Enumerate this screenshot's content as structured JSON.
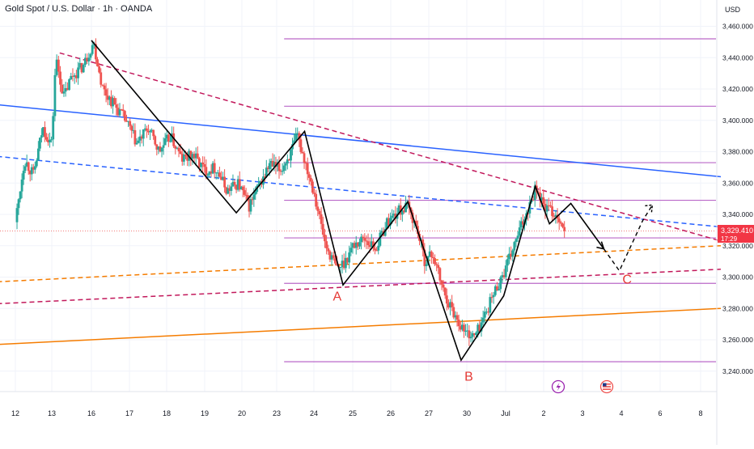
{
  "header": {
    "title": "Gold Spot / U.S. Dollar · 1h · OANDA"
  },
  "axis": {
    "currency": "USD"
  },
  "price_tag": {
    "value": "3,329.410",
    "countdown": "17:29"
  },
  "colors": {
    "bull": "#26a69a",
    "bear": "#ef5350",
    "blue_line": "#2962ff",
    "orange_line": "#f57c00",
    "magenta_line": "#c2185b",
    "level_line": "#ba68c8",
    "wave": "#000000",
    "label_red": "#e53935"
  },
  "chart_data": {
    "type": "candlestick",
    "title": "Gold Spot / U.S. Dollar · 1h · OANDA",
    "ylim": [
      3228,
      3472
    ],
    "y_ticks": [
      "3,240.000",
      "3,260.000",
      "3,280.000",
      "3,300.000",
      "3,320.000",
      "3,340.000",
      "3,360.000",
      "3,380.000",
      "3,400.000",
      "3,420.000",
      "3,440.000",
      "3,460.000"
    ],
    "y_tick_values": [
      3240,
      3260,
      3280,
      3300,
      3320,
      3340,
      3360,
      3380,
      3400,
      3420,
      3440,
      3460
    ],
    "x_ticks": [
      "12",
      "13",
      "16",
      "17",
      "18",
      "19",
      "20",
      "23",
      "24",
      "25",
      "26",
      "27",
      "30",
      "Jul",
      "2",
      "3",
      "4",
      "6",
      "8"
    ],
    "x_tick_index": [
      0,
      1,
      2,
      3,
      4,
      5,
      6,
      7,
      8,
      9,
      10,
      11,
      12,
      13,
      14,
      15,
      16,
      17,
      18
    ],
    "last_price": 3329.41,
    "price_path": [
      [
        0.0,
        3335
      ],
      [
        0.25,
        3375
      ],
      [
        0.5,
        3365
      ],
      [
        0.75,
        3395
      ],
      [
        1.0,
        3385
      ],
      [
        1.1,
        3440
      ],
      [
        1.3,
        3415
      ],
      [
        1.5,
        3428
      ],
      [
        1.8,
        3435
      ],
      [
        2.05,
        3450
      ],
      [
        2.3,
        3420
      ],
      [
        2.6,
        3410
      ],
      [
        2.9,
        3400
      ],
      [
        3.2,
        3385
      ],
      [
        3.5,
        3395
      ],
      [
        3.8,
        3380
      ],
      [
        4.1,
        3390
      ],
      [
        4.4,
        3375
      ],
      [
        4.7,
        3378
      ],
      [
        5.0,
        3368
      ],
      [
        5.3,
        3370
      ],
      [
        5.6,
        3355
      ],
      [
        5.9,
        3360
      ],
      [
        6.2,
        3345
      ],
      [
        6.5,
        3358
      ],
      [
        6.8,
        3372
      ],
      [
        7.1,
        3368
      ],
      [
        7.4,
        3380
      ],
      [
        7.55,
        3390
      ],
      [
        7.75,
        3375
      ],
      [
        8.0,
        3355
      ],
      [
        8.3,
        3320
      ],
      [
        8.6,
        3305
      ],
      [
        8.8,
        3310
      ],
      [
        9.0,
        3320
      ],
      [
        9.3,
        3325
      ],
      [
        9.6,
        3318
      ],
      [
        9.9,
        3335
      ],
      [
        10.2,
        3342
      ],
      [
        10.45,
        3345
      ],
      [
        10.7,
        3330
      ],
      [
        10.9,
        3310
      ],
      [
        11.1,
        3315
      ],
      [
        11.4,
        3290
      ],
      [
        11.7,
        3275
      ],
      [
        11.95,
        3265
      ],
      [
        12.2,
        3262
      ],
      [
        12.45,
        3275
      ],
      [
        12.7,
        3290
      ],
      [
        13.0,
        3305
      ],
      [
        13.3,
        3325
      ],
      [
        13.6,
        3345
      ],
      [
        13.8,
        3358
      ],
      [
        14.0,
        3345
      ],
      [
        14.2,
        3342
      ],
      [
        14.4,
        3338
      ],
      [
        14.55,
        3329
      ]
    ],
    "trendlines": [
      {
        "name": "blue-trendline-solid",
        "style": "solid",
        "color": "blue_line",
        "points": [
          [
            -0.5,
            3410
          ],
          [
            18.5,
            3364
          ]
        ]
      },
      {
        "name": "blue-trendline-dashed",
        "style": "dashed",
        "color": "blue_line",
        "points": [
          [
            -0.5,
            3377
          ],
          [
            18.5,
            3332
          ]
        ]
      },
      {
        "name": "red-trendline-dashed-upper",
        "style": "dashed",
        "color": "magenta_line",
        "points": [
          [
            1.2,
            3443
          ],
          [
            18.5,
            3323
          ]
        ]
      },
      {
        "name": "red-trendline-dashed-lower",
        "style": "dashed",
        "color": "magenta_line",
        "points": [
          [
            -0.5,
            3283
          ],
          [
            18.5,
            3305
          ]
        ]
      },
      {
        "name": "orange-trendline-dashed",
        "style": "dashed",
        "color": "orange_line",
        "points": [
          [
            -0.5,
            3297
          ],
          [
            18.5,
            3320
          ]
        ]
      },
      {
        "name": "orange-trendline-solid",
        "style": "solid",
        "color": "orange_line",
        "points": [
          [
            -0.5,
            3257
          ],
          [
            18.5,
            3280
          ]
        ]
      }
    ],
    "levels": [
      3452,
      3409,
      3373,
      3349,
      3325,
      3296,
      3246
    ],
    "level_start_index": 7.2,
    "wave_path": [
      [
        2.0,
        3451
      ],
      [
        5.85,
        3341
      ],
      [
        7.75,
        3393
      ],
      [
        8.75,
        3295
      ],
      [
        10.45,
        3348
      ],
      [
        11.85,
        3247
      ],
      [
        12.95,
        3288
      ],
      [
        13.78,
        3358
      ],
      [
        14.15,
        3334
      ],
      [
        14.7,
        3347
      ],
      [
        15.55,
        3318
      ]
    ],
    "wave_projection": [
      [
        15.55,
        3318
      ],
      [
        15.95,
        3304
      ],
      [
        16.55,
        3336
      ],
      [
        16.8,
        3346
      ]
    ],
    "wave_labels": [
      {
        "text": "A",
        "x": 8.6,
        "y": 3285
      },
      {
        "text": "B",
        "x": 12.05,
        "y": 3234
      },
      {
        "text": "C",
        "x": 16.15,
        "y": 3296
      }
    ]
  }
}
